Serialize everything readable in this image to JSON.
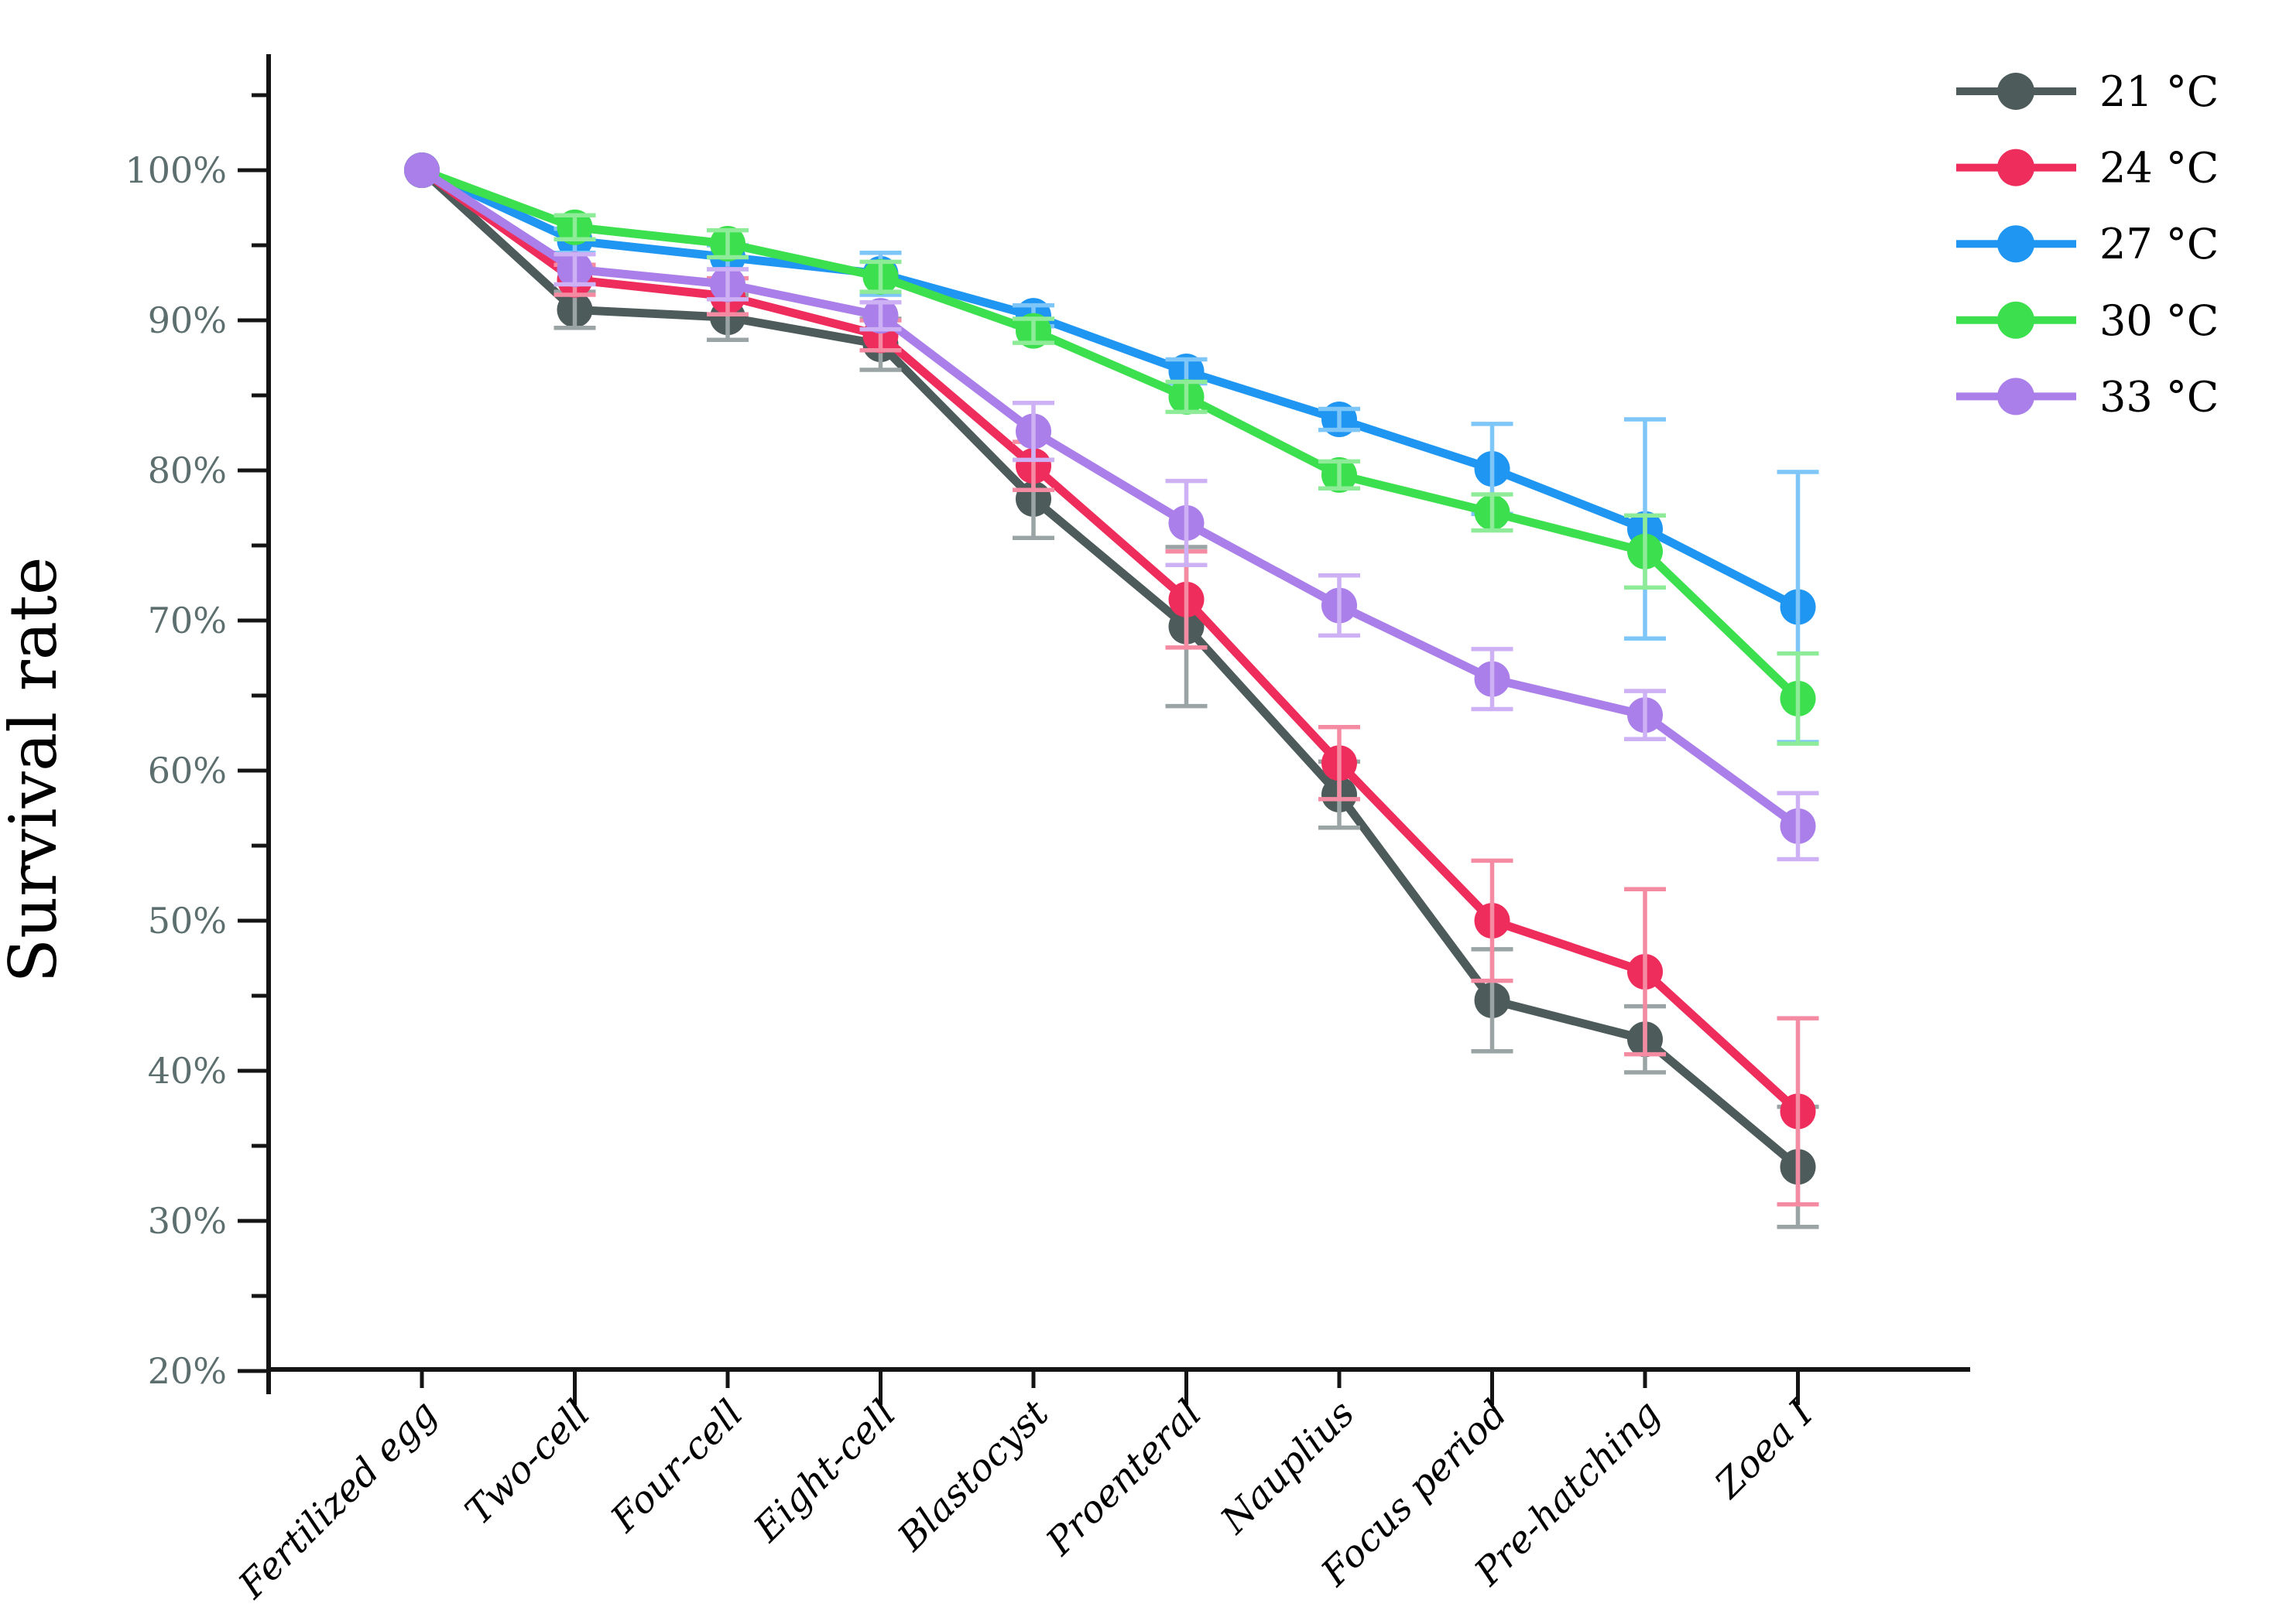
{
  "figure": {
    "background": "#ffffff",
    "axis_color": "#141414",
    "tick_label_color": "#5c6e6e"
  },
  "chart_data": {
    "type": "line",
    "title": "",
    "xlabel": "",
    "ylabel": "Survival rate",
    "ylim": [
      20,
      105
    ],
    "grid": false,
    "legend_position": "top-right",
    "categories": [
      "Fertilized egg",
      "Two-cell",
      "Four-cell",
      "Eight-cell",
      "Blastocyst",
      "Proenteral",
      "Nauplius",
      "Focus period",
      "Pre-hatching",
      "Zoea I"
    ],
    "y_ticks": [
      {
        "value": 100,
        "label": "100%"
      },
      {
        "value": 90,
        "label": "90%"
      },
      {
        "value": 80,
        "label": "80%"
      },
      {
        "value": 70,
        "label": "70%"
      },
      {
        "value": 60,
        "label": "60%"
      },
      {
        "value": 50,
        "label": "50%"
      },
      {
        "value": 40,
        "label": "40%"
      },
      {
        "value": 30,
        "label": "30%"
      },
      {
        "value": 20,
        "label": "20%"
      }
    ],
    "series": [
      {
        "name": "21 °C",
        "color": "#4e5b5b",
        "error_color": "#9aa4a4",
        "values": [
          100,
          90.7,
          90.2,
          88.4,
          78.1,
          69.6,
          58.4,
          44.7,
          42.1,
          33.6
        ],
        "errors": [
          0,
          1.2,
          1.5,
          1.7,
          2.6,
          5.3,
          2.2,
          3.4,
          2.2,
          4.0
        ]
      },
      {
        "name": "24 °C",
        "color": "#ee2d5c",
        "error_color": "#f58ba3",
        "values": [
          100,
          92.7,
          91.6,
          89.0,
          80.3,
          71.4,
          60.5,
          50.0,
          46.6,
          37.3
        ],
        "errors": [
          0,
          1.0,
          1.2,
          1.0,
          1.6,
          3.2,
          2.4,
          4.0,
          5.5,
          6.2
        ]
      },
      {
        "name": "27 °C",
        "color": "#2096f3",
        "error_color": "#7ec6f8",
        "values": [
          100,
          95.3,
          94.2,
          93.1,
          90.3,
          86.6,
          83.4,
          80.1,
          76.1,
          70.9
        ],
        "errors": [
          0,
          0.8,
          0.8,
          1.4,
          0.7,
          0.8,
          0.7,
          3.0,
          7.3,
          9.0
        ]
      },
      {
        "name": "30 °C",
        "color": "#3cdf4d",
        "error_color": "#8eeb97",
        "values": [
          100,
          96.2,
          95.1,
          92.9,
          89.3,
          84.9,
          79.7,
          77.2,
          74.6,
          64.8
        ],
        "errors": [
          0,
          0.8,
          0.9,
          1.0,
          0.8,
          1.0,
          0.9,
          1.2,
          2.4,
          3.0
        ]
      },
      {
        "name": "33 °C",
        "color": "#aa7fe9",
        "error_color": "#cdb1f4",
        "values": [
          100,
          93.4,
          92.4,
          90.3,
          82.6,
          76.5,
          71.0,
          66.1,
          63.7,
          56.3
        ],
        "errors": [
          0,
          1.0,
          1.0,
          0.9,
          1.9,
          2.8,
          2.0,
          2.0,
          1.6,
          2.2
        ]
      }
    ]
  }
}
